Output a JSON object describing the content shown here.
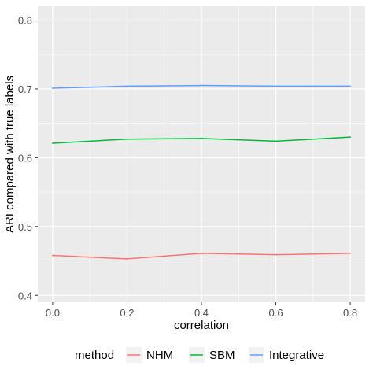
{
  "chart_data": {
    "type": "line",
    "xlabel": "correlation",
    "ylabel": "ARI compared with true labels",
    "x": [
      0.0,
      0.2,
      0.4,
      0.6,
      0.8
    ],
    "xticks": [
      "0.0",
      "0.2",
      "0.4",
      "0.6",
      "0.8"
    ],
    "yticks": [
      "0.4",
      "0.5",
      "0.6",
      "0.7",
      "0.8"
    ],
    "xlim": [
      -0.04,
      0.84
    ],
    "ylim": [
      0.39,
      0.82
    ],
    "grid": true,
    "background": "#EBEBEB",
    "legend": {
      "title": "method",
      "position": "bottom"
    },
    "series": [
      {
        "name": "NHM",
        "color": "#F8766D",
        "values": [
          0.458,
          0.453,
          0.461,
          0.459,
          0.461
        ]
      },
      {
        "name": "SBM",
        "color": "#00BA38",
        "values": [
          0.621,
          0.627,
          0.628,
          0.624,
          0.63
        ]
      },
      {
        "name": "Integrative",
        "color": "#619CFF",
        "values": [
          0.701,
          0.704,
          0.705,
          0.704,
          0.704
        ]
      }
    ]
  }
}
